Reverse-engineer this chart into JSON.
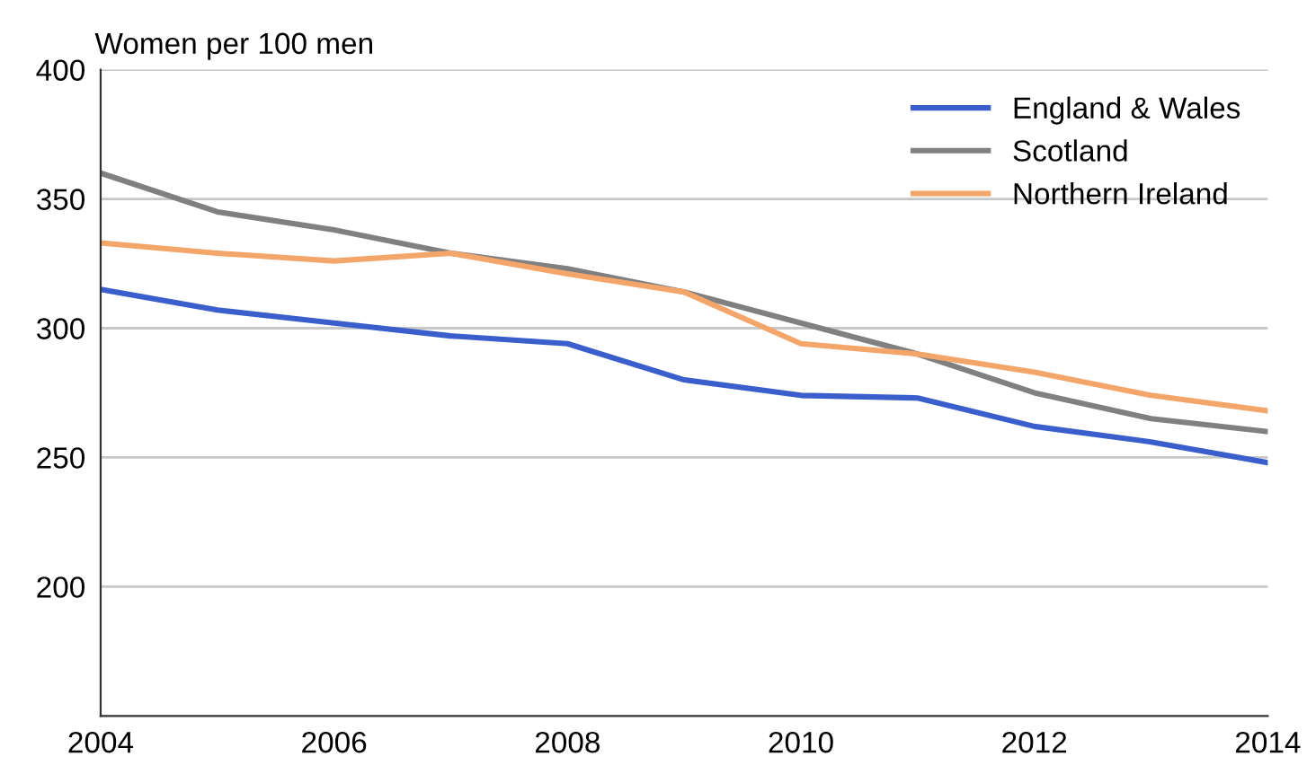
{
  "chart_data": {
    "type": "line",
    "ylabel": "Women per 100 men",
    "x": [
      2004,
      2005,
      2006,
      2007,
      2008,
      2009,
      2010,
      2011,
      2012,
      2013,
      2014
    ],
    "series": [
      {
        "name": "England & Wales",
        "color": "#3a5fcd",
        "values": [
          315,
          307,
          302,
          297,
          294,
          280,
          274,
          273,
          262,
          256,
          248
        ]
      },
      {
        "name": "Scotland",
        "color": "#808080",
        "values": [
          360,
          345,
          338,
          329,
          323,
          314,
          302,
          290,
          275,
          265,
          260
        ]
      },
      {
        "name": "Northern Ireland",
        "color": "#f4a66a",
        "values": [
          333,
          329,
          326,
          329,
          321,
          314,
          294,
          290,
          283,
          274,
          268
        ]
      }
    ],
    "xlim": [
      2004,
      2014
    ],
    "xticks": [
      2004,
      2006,
      2008,
      2010,
      2012,
      2014
    ],
    "ylim": [
      150,
      400
    ],
    "yticks": [
      200,
      250,
      300,
      350,
      400
    ],
    "grid": "y",
    "legend": "top right",
    "marker": "none",
    "line_style": "solid"
  }
}
